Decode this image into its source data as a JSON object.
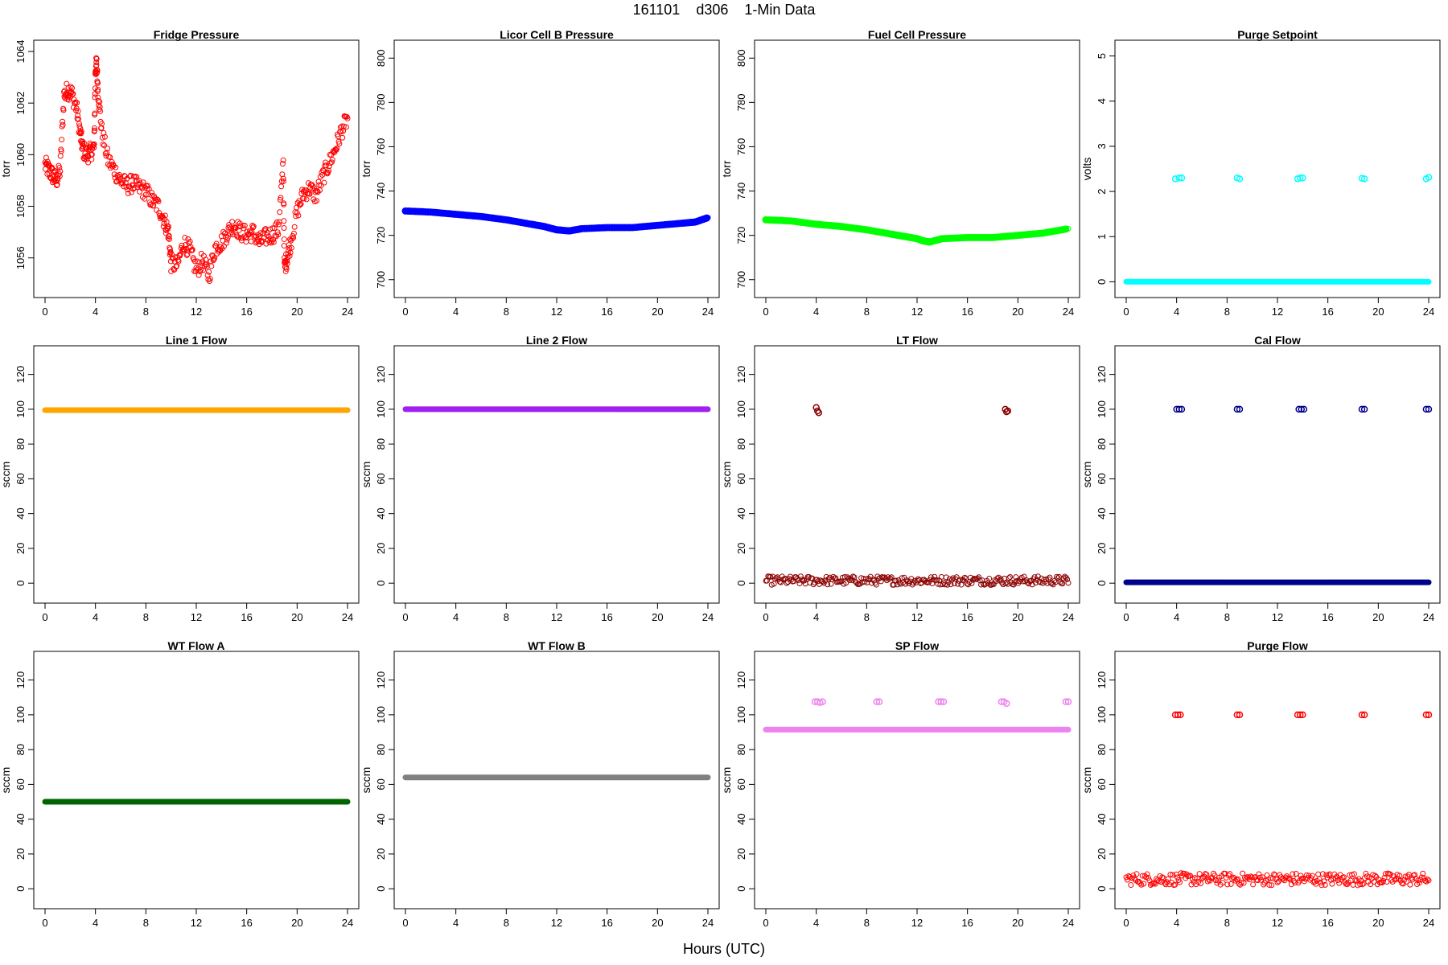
{
  "figure": {
    "title": "161101    d306    1-Min Data",
    "xlabel": "Hours (UTC)"
  },
  "chart_data": [
    {
      "type": "scatter",
      "title": "Fridge Pressure",
      "ylabel": "torr",
      "color": "#ff0000",
      "xlim": [
        0,
        24
      ],
      "ylim": [
        1054.9,
        1064
      ],
      "xticks": [
        0,
        4,
        8,
        12,
        16,
        20,
        24
      ],
      "yticks": [
        1056,
        1058,
        1060,
        1062,
        1064
      ],
      "series": [
        {
          "x": [
            0,
            0.3,
            0.6,
            0.9,
            1.2,
            1.5,
            1.8,
            2.1,
            2.5,
            2.8,
            3.0,
            3.3,
            3.6,
            3.9,
            4.0,
            4.1,
            4.2,
            4.5,
            5.0,
            5.5,
            6.0,
            6.5,
            7.0,
            7.5,
            8.0,
            8.5,
            9.0,
            9.5,
            9.8,
            10.0,
            10.5,
            11.0,
            11.5,
            12.0,
            12.5,
            13.0,
            13.5,
            14.0,
            14.5,
            15.0,
            15.5,
            16.0,
            16.5,
            17.0,
            17.5,
            18.0,
            18.5,
            18.9,
            19.0,
            19.2,
            19.5,
            20.0,
            20.5,
            21.0,
            21.5,
            22.0,
            22.5,
            23.0,
            23.5,
            24.0
          ],
          "y": [
            1059.6,
            1059.4,
            1059.2,
            1059.0,
            1059.4,
            1062.3,
            1062.5,
            1062.4,
            1061.8,
            1060.8,
            1060.2,
            1060.0,
            1060.1,
            1060.3,
            1063.3,
            1063.5,
            1062.5,
            1060.9,
            1059.8,
            1059.4,
            1059.0,
            1058.8,
            1058.9,
            1058.7,
            1058.6,
            1058.2,
            1058.0,
            1057.4,
            1057.0,
            1055.8,
            1055.7,
            1056.6,
            1056.3,
            1055.5,
            1055.9,
            1055.3,
            1056.4,
            1056.6,
            1057.0,
            1057.3,
            1057.0,
            1056.9,
            1057.0,
            1056.6,
            1056.8,
            1056.9,
            1057.1,
            1059.6,
            1055.6,
            1056.0,
            1056.6,
            1057.8,
            1058.5,
            1058.7,
            1058.4,
            1059.1,
            1059.6,
            1060.2,
            1060.9,
            1061.4
          ]
        }
      ]
    },
    {
      "type": "scatter",
      "title": "Licor Cell B Pressure",
      "ylabel": "torr",
      "color": "#0000ff",
      "xlim": [
        0,
        24
      ],
      "ylim": [
        697,
        803
      ],
      "xticks": [
        0,
        4,
        8,
        12,
        16,
        20,
        24
      ],
      "yticks": [
        700,
        720,
        740,
        760,
        780,
        800
      ],
      "series": [
        {
          "x": [
            0,
            2,
            4,
            6,
            8,
            10,
            11,
            12,
            13,
            14,
            16,
            18,
            20,
            22,
            23,
            24
          ],
          "y": [
            731,
            730.5,
            729.5,
            728.5,
            727,
            725,
            724,
            722.5,
            722,
            723,
            723.5,
            723.5,
            724.5,
            725.5,
            726,
            728
          ]
        }
      ]
    },
    {
      "type": "scatter",
      "title": "Fuel Cell Pressure",
      "ylabel": "torr",
      "color": "#00ff00",
      "xlim": [
        0,
        24
      ],
      "ylim": [
        697,
        803
      ],
      "xticks": [
        0,
        4,
        8,
        12,
        16,
        20,
        24
      ],
      "yticks": [
        700,
        720,
        740,
        760,
        780,
        800
      ],
      "series": [
        {
          "x": [
            0,
            2,
            4,
            6,
            8,
            10,
            11,
            12,
            12.5,
            13,
            14,
            16,
            18,
            20,
            22,
            24
          ],
          "y": [
            727,
            726.5,
            725,
            724,
            722.5,
            720.5,
            719.5,
            718.5,
            717.5,
            717,
            718.5,
            719,
            719,
            720,
            721,
            723
          ]
        }
      ]
    },
    {
      "type": "scatter",
      "title": "Purge Setpoint",
      "ylabel": "volts",
      "color": "#00ffff",
      "xlim": [
        0,
        24
      ],
      "ylim": [
        -0.1,
        5.1
      ],
      "xticks": [
        0,
        4,
        8,
        12,
        16,
        20,
        24
      ],
      "yticks": [
        0,
        1,
        2,
        3,
        4,
        5
      ],
      "series": [
        {
          "x": [
            0,
            24
          ],
          "y": [
            0,
            0
          ],
          "style": "band"
        },
        {
          "x": [
            3.9,
            4.2,
            4.4,
            8.8,
            9.0,
            13.6,
            13.8,
            14.0,
            18.7,
            18.9,
            23.8,
            24.0
          ],
          "y": [
            2.28,
            2.3,
            2.3,
            2.3,
            2.28,
            2.28,
            2.3,
            2.3,
            2.29,
            2.28,
            2.28,
            2.31
          ]
        }
      ]
    },
    {
      "type": "scatter",
      "title": "Line 1 Flow",
      "ylabel": "sccm",
      "color": "#ffa500",
      "xlim": [
        0,
        24
      ],
      "ylim": [
        -5,
        130
      ],
      "xticks": [
        0,
        4,
        8,
        12,
        16,
        20,
        24
      ],
      "yticks": [
        0,
        20,
        40,
        60,
        80,
        100,
        120
      ],
      "series": [
        {
          "x": [
            0,
            24
          ],
          "y": [
            99.5,
            99.5
          ],
          "style": "band"
        }
      ]
    },
    {
      "type": "scatter",
      "title": "Line 2 Flow",
      "ylabel": "sccm",
      "color": "#a020f0",
      "xlim": [
        0,
        24
      ],
      "ylim": [
        -5,
        130
      ],
      "xticks": [
        0,
        4,
        8,
        12,
        16,
        20,
        24
      ],
      "yticks": [
        0,
        20,
        40,
        60,
        80,
        100,
        120
      ],
      "series": [
        {
          "x": [
            0,
            24
          ],
          "y": [
            100,
            100
          ],
          "style": "band"
        }
      ]
    },
    {
      "type": "scatter",
      "title": "LT Flow",
      "ylabel": "sccm",
      "color": "#8b0000",
      "xlim": [
        0,
        24
      ],
      "ylim": [
        -5,
        130
      ],
      "xticks": [
        0,
        4,
        8,
        12,
        16,
        20,
        24
      ],
      "yticks": [
        0,
        20,
        40,
        60,
        80,
        100,
        120
      ],
      "series": [
        {
          "x": [
            0,
            24
          ],
          "y": [
            1.5,
            1.5
          ],
          "style": "noisy",
          "spread": 2.5
        },
        {
          "x": [
            4.0,
            4.1,
            4.2,
            19.0,
            19.1,
            19.2
          ],
          "y": [
            101,
            99,
            98,
            100,
            98.5,
            99
          ]
        }
      ]
    },
    {
      "type": "scatter",
      "title": "Cal Flow",
      "ylabel": "sccm",
      "color": "#00008b",
      "xlim": [
        0,
        24
      ],
      "ylim": [
        -5,
        130
      ],
      "xticks": [
        0,
        4,
        8,
        12,
        16,
        20,
        24
      ],
      "yticks": [
        0,
        20,
        40,
        60,
        80,
        100,
        120
      ],
      "series": [
        {
          "x": [
            0,
            24
          ],
          "y": [
            0.5,
            0.5
          ],
          "style": "band"
        },
        {
          "x": [
            4.0,
            4.2,
            4.4,
            8.8,
            9.0,
            13.7,
            13.9,
            14.1,
            18.7,
            18.9,
            23.8,
            24.0
          ],
          "y": [
            100,
            100,
            100,
            100,
            100,
            100,
            100,
            100,
            100,
            100,
            100,
            100
          ]
        }
      ]
    },
    {
      "type": "scatter",
      "title": "WT Flow A",
      "ylabel": "sccm",
      "color": "#006400",
      "xlim": [
        0,
        24
      ],
      "ylim": [
        -5,
        130
      ],
      "xticks": [
        0,
        4,
        8,
        12,
        16,
        20,
        24
      ],
      "yticks": [
        0,
        20,
        40,
        60,
        80,
        100,
        120
      ],
      "series": [
        {
          "x": [
            0,
            24
          ],
          "y": [
            50,
            50
          ],
          "style": "band"
        }
      ]
    },
    {
      "type": "scatter",
      "title": "WT Flow B",
      "ylabel": "sccm",
      "color": "#808080",
      "xlim": [
        0,
        24
      ],
      "ylim": [
        -5,
        130
      ],
      "xticks": [
        0,
        4,
        8,
        12,
        16,
        20,
        24
      ],
      "yticks": [
        0,
        20,
        40,
        60,
        80,
        100,
        120
      ],
      "series": [
        {
          "x": [
            0,
            24
          ],
          "y": [
            64,
            64
          ],
          "style": "band"
        }
      ]
    },
    {
      "type": "scatter",
      "title": "SP Flow",
      "ylabel": "sccm",
      "color": "#ee82ee",
      "xlim": [
        0,
        24
      ],
      "ylim": [
        -5,
        130
      ],
      "xticks": [
        0,
        4,
        8,
        12,
        16,
        20,
        24
      ],
      "yticks": [
        0,
        20,
        40,
        60,
        80,
        100,
        120
      ],
      "series": [
        {
          "x": [
            0,
            24
          ],
          "y": [
            91.5,
            91.5
          ],
          "style": "band"
        },
        {
          "x": [
            3.9,
            4.1,
            4.3,
            4.5,
            8.8,
            9.0,
            13.7,
            13.9,
            14.1,
            18.7,
            18.9,
            19.1,
            23.8,
            24.0
          ],
          "y": [
            107.5,
            107.5,
            107,
            107.5,
            107.5,
            107.5,
            107.5,
            107.5,
            107.5,
            107.5,
            107.5,
            106.5,
            107.5,
            107.5
          ]
        }
      ]
    },
    {
      "type": "scatter",
      "title": "Purge Flow",
      "ylabel": "sccm",
      "color": "#ff0000",
      "xlim": [
        0,
        24
      ],
      "ylim": [
        -5,
        130
      ],
      "xticks": [
        0,
        4,
        8,
        12,
        16,
        20,
        24
      ],
      "yticks": [
        0,
        20,
        40,
        60,
        80,
        100,
        120
      ],
      "series": [
        {
          "x": [
            0,
            24
          ],
          "y": [
            5.5,
            5.5
          ],
          "style": "noisy",
          "spread": 3.5
        },
        {
          "x": [
            3.9,
            4.1,
            4.3,
            8.8,
            9.0,
            13.6,
            13.8,
            14.0,
            18.7,
            18.9,
            23.8,
            24.0
          ],
          "y": [
            100,
            100,
            100,
            100,
            100,
            100,
            100,
            100,
            100,
            100,
            100,
            100
          ]
        }
      ]
    }
  ]
}
